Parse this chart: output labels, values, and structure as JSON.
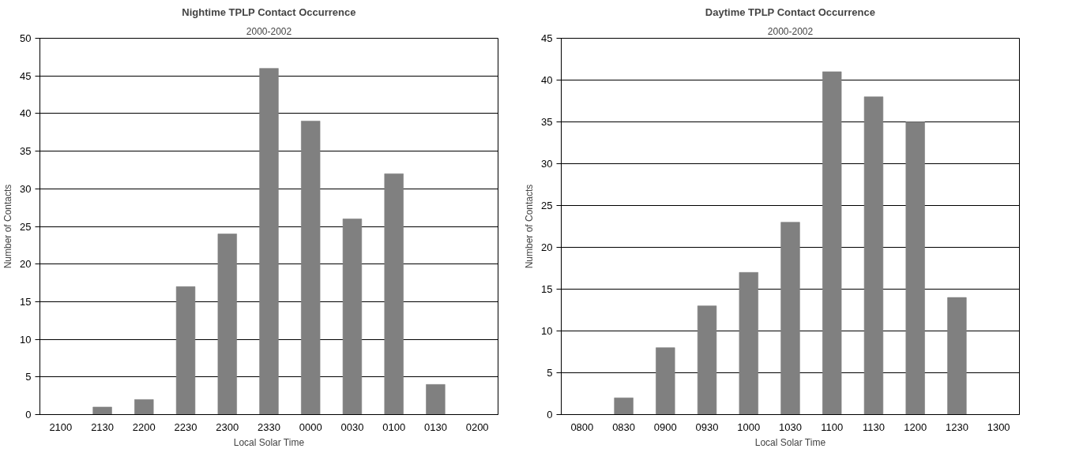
{
  "chart_data": [
    {
      "type": "bar",
      "title": "Nightime TPLP Contact Occurrence",
      "subtitle": "2000-2002",
      "xlabel": "Local Solar Time",
      "ylabel": "Number of Contacts",
      "categories": [
        "2100",
        "2130",
        "2200",
        "2230",
        "2300",
        "2330",
        "0000",
        "0030",
        "0100",
        "0130",
        "0200"
      ],
      "values": [
        0,
        1,
        2,
        17,
        24,
        46,
        39,
        26,
        32,
        4,
        0
      ],
      "color": "#808080",
      "ylim": [
        0,
        50
      ],
      "yticks": [
        0,
        5,
        10,
        15,
        20,
        25,
        30,
        35,
        40,
        45,
        50
      ],
      "grid": "y"
    },
    {
      "type": "bar",
      "title": "Daytime TPLP Contact Occurrence",
      "subtitle": "2000-2002",
      "xlabel": "Local Solar Time",
      "ylabel": "Number of Contacts",
      "categories": [
        "0800",
        "0830",
        "0900",
        "0930",
        "1000",
        "1030",
        "1100",
        "1130",
        "1200",
        "1230",
        "1300"
      ],
      "values": [
        0,
        2,
        8,
        13,
        17,
        23,
        41,
        38,
        35,
        14,
        0
      ],
      "color": "#808080",
      "ylim": [
        0,
        45
      ],
      "yticks": [
        0,
        5,
        10,
        15,
        20,
        25,
        30,
        35,
        40,
        45
      ],
      "grid": "y"
    }
  ]
}
